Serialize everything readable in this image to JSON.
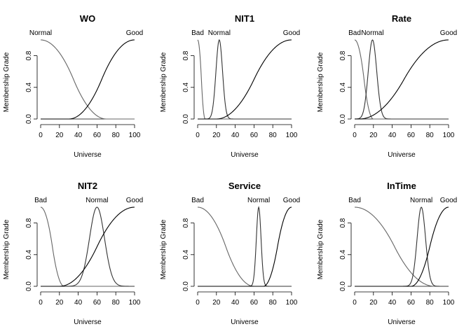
{
  "chart_data": [
    {
      "type": "line",
      "title": "WO",
      "xlabel": "Universe",
      "ylabel": "Membership Grade",
      "xlim": [
        0,
        100
      ],
      "ylim": [
        0,
        1
      ],
      "xticks": [
        "0",
        "20",
        "40",
        "60",
        "80",
        "100"
      ],
      "yticks": [
        "0.0",
        "0.4",
        "0.8"
      ],
      "grid": false,
      "series": [
        {
          "name": "Normal",
          "shape": "zmf",
          "params": [
            0,
            70
          ],
          "color": "#666666"
        },
        {
          "name": "Good",
          "shape": "smf",
          "params": [
            30,
            100
          ],
          "color": "#000000"
        }
      ]
    },
    {
      "type": "line",
      "title": "NIT1",
      "xlabel": "Universe",
      "ylabel": "Membership Grade",
      "xlim": [
        0,
        100
      ],
      "ylim": [
        0,
        1
      ],
      "xticks": [
        "0",
        "20",
        "40",
        "60",
        "80",
        "100"
      ],
      "yticks": [
        "0.0",
        "0.4",
        "0.8"
      ],
      "grid": false,
      "series": [
        {
          "name": "Bad",
          "shape": "zmf",
          "params": [
            0,
            8
          ],
          "color": "#666666"
        },
        {
          "name": "Normal",
          "shape": "gauss",
          "params": [
            23,
            3.5
          ],
          "color": "#333333"
        },
        {
          "name": "Good",
          "shape": "smf",
          "params": [
            20,
            100
          ],
          "color": "#000000"
        }
      ]
    },
    {
      "type": "line",
      "title": "Rate",
      "xlabel": "Universe",
      "ylabel": "Membership Grade",
      "xlim": [
        0,
        100
      ],
      "ylim": [
        0,
        1
      ],
      "xticks": [
        "0",
        "20",
        "40",
        "60",
        "80",
        "100"
      ],
      "yticks": [
        "0.0",
        "0.4",
        "0.8"
      ],
      "grid": false,
      "series": [
        {
          "name": "Bad",
          "shape": "zmf",
          "params": [
            0,
            20
          ],
          "color": "#666666"
        },
        {
          "name": "Normal",
          "shape": "gauss",
          "params": [
            19,
            4.5
          ],
          "color": "#333333"
        },
        {
          "name": "Good",
          "shape": "smf",
          "params": [
            5,
            100
          ],
          "color": "#000000"
        }
      ]
    },
    {
      "type": "line",
      "title": "NIT2",
      "xlabel": "Universe",
      "ylabel": "Membership Grade",
      "xlim": [
        0,
        100
      ],
      "ylim": [
        0,
        1
      ],
      "xticks": [
        "0",
        "20",
        "40",
        "60",
        "80",
        "100"
      ],
      "yticks": [
        "0.0",
        "0.4",
        "0.8"
      ],
      "grid": false,
      "series": [
        {
          "name": "Bad",
          "shape": "zmf",
          "params": [
            0,
            25
          ],
          "color": "#666666"
        },
        {
          "name": "Normal",
          "shape": "gauss",
          "params": [
            60,
            8
          ],
          "color": "#333333"
        },
        {
          "name": "Good",
          "shape": "smf",
          "params": [
            20,
            100
          ],
          "color": "#000000"
        }
      ]
    },
    {
      "type": "line",
      "title": "Service",
      "xlabel": "Universe",
      "ylabel": "Membership Grade",
      "xlim": [
        0,
        100
      ],
      "ylim": [
        0,
        1
      ],
      "xticks": [
        "0",
        "20",
        "40",
        "60",
        "80",
        "100"
      ],
      "yticks": [
        "0.0",
        "0.4",
        "0.8"
      ],
      "grid": false,
      "series": [
        {
          "name": "Bad",
          "shape": "zmf",
          "params": [
            0,
            60
          ],
          "color": "#666666"
        },
        {
          "name": "Normal",
          "shape": "gauss",
          "params": [
            65,
            2.5
          ],
          "color": "#333333"
        },
        {
          "name": "Good",
          "shape": "smf",
          "params": [
            70,
            100
          ],
          "color": "#000000"
        }
      ]
    },
    {
      "type": "line",
      "title": "InTime",
      "xlabel": "Universe",
      "ylabel": "Membership Grade",
      "xlim": [
        0,
        100
      ],
      "ylim": [
        0,
        1
      ],
      "xticks": [
        "0",
        "20",
        "40",
        "60",
        "80",
        "100"
      ],
      "yticks": [
        "0.0",
        "0.4",
        "0.8"
      ],
      "grid": false,
      "series": [
        {
          "name": "Bad",
          "shape": "zmf",
          "params": [
            0,
            85
          ],
          "color": "#666666"
        },
        {
          "name": "Normal",
          "shape": "gauss",
          "params": [
            71,
            4.5
          ],
          "color": "#333333"
        },
        {
          "name": "Good",
          "shape": "smf",
          "params": [
            60,
            100
          ],
          "color": "#000000"
        }
      ]
    }
  ]
}
